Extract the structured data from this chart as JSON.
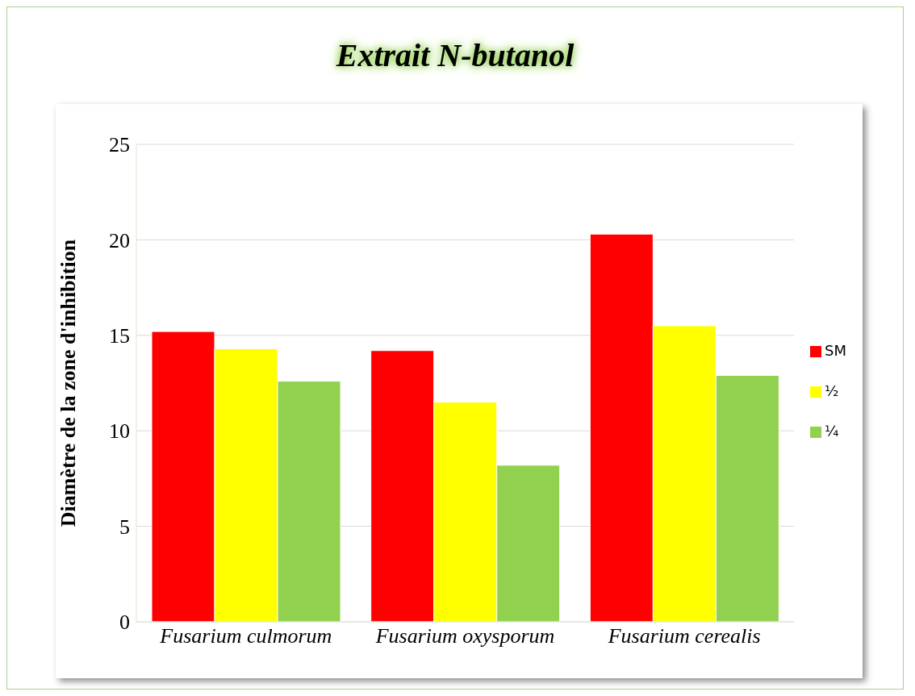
{
  "chart_data": {
    "type": "bar",
    "title": "Extrait N-butanol",
    "ylabel": "Diamètre de la zone d'inhibition",
    "categories": [
      "Fusarium culmorum",
      "Fusarium oxysporum",
      "Fusarium cerealis"
    ],
    "series": [
      {
        "name": "SM",
        "color": "#ff0000",
        "values": [
          15.2,
          14.2,
          20.3
        ]
      },
      {
        "name": "½",
        "color": "#ffff00",
        "values": [
          14.3,
          11.5,
          15.5
        ]
      },
      {
        "name": "¼",
        "color": "#92d050",
        "values": [
          12.6,
          8.2,
          12.9
        ]
      }
    ],
    "ylim": [
      0,
      25
    ],
    "yticks": [
      0,
      5,
      10,
      15,
      20,
      25
    ],
    "grid": "y",
    "legend": "right"
  }
}
